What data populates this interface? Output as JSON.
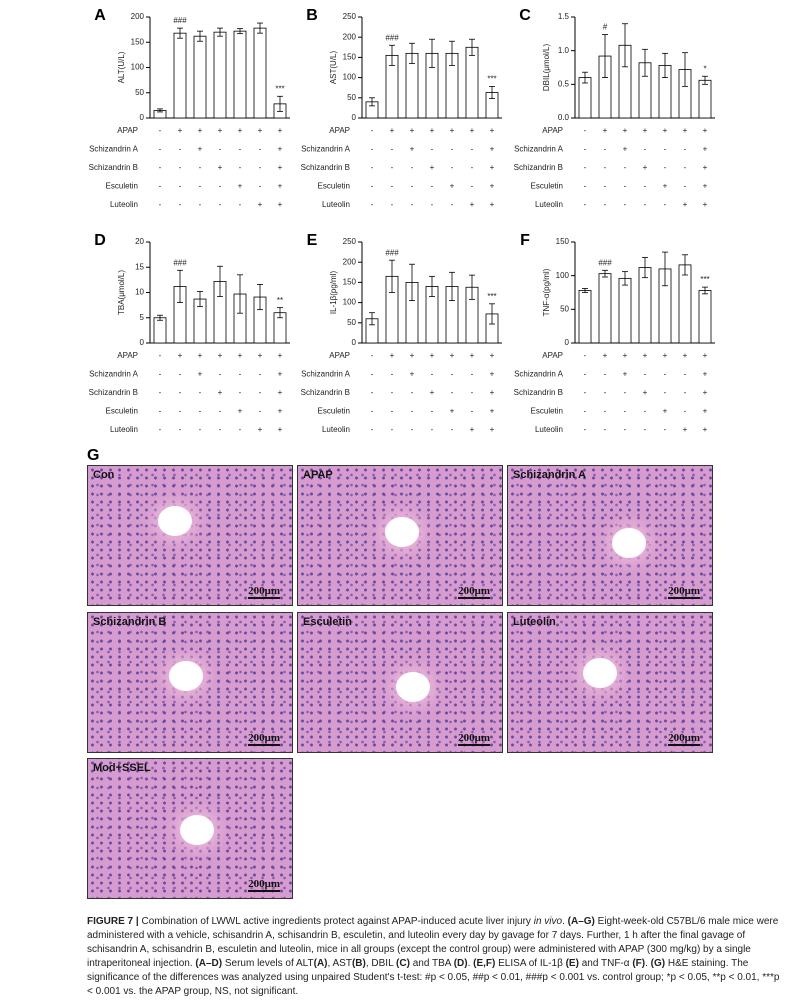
{
  "chart_data": [
    {
      "type": "bar",
      "panel": "A",
      "y_label": "ALT(U/L)",
      "values": [
        15,
        168,
        162,
        170,
        172,
        178,
        28
      ],
      "errors": [
        3,
        10,
        10,
        8,
        5,
        10,
        15
      ],
      "annotations": [
        null,
        "###",
        null,
        null,
        null,
        null,
        "***"
      ],
      "ylim": [
        0,
        200
      ],
      "yticks": [
        0,
        50,
        100,
        150,
        200
      ],
      "color": "#ffffff",
      "treatments": [
        {
          "label": "APAP",
          "marks": [
            "-",
            "+",
            "+",
            "+",
            "+",
            "+",
            "+"
          ]
        },
        {
          "label": "Schizandrin A",
          "marks": [
            "-",
            "-",
            "+",
            "-",
            "-",
            "-",
            "+"
          ]
        },
        {
          "label": "Schizandrin B",
          "marks": [
            "-",
            "-",
            "-",
            "+",
            "-",
            "-",
            "+"
          ]
        },
        {
          "label": "Esculetin",
          "marks": [
            "-",
            "-",
            "-",
            "-",
            "+",
            "-",
            "+"
          ]
        },
        {
          "label": "Luteolin",
          "marks": [
            "-",
            "-",
            "-",
            "-",
            "-",
            "+",
            "+"
          ]
        }
      ]
    },
    {
      "type": "bar",
      "panel": "B",
      "y_label": "AST(U/L)",
      "values": [
        40,
        155,
        160,
        160,
        160,
        175,
        63
      ],
      "errors": [
        10,
        25,
        25,
        35,
        30,
        20,
        15
      ],
      "annotations": [
        null,
        "###",
        null,
        null,
        null,
        null,
        "***"
      ],
      "ylim": [
        0,
        250
      ],
      "yticks": [
        0,
        50,
        100,
        150,
        200,
        250
      ],
      "color": "#ffffff",
      "treatments": [
        {
          "label": "APAP",
          "marks": [
            "-",
            "+",
            "+",
            "+",
            "+",
            "+",
            "+"
          ]
        },
        {
          "label": "Schizandrin A",
          "marks": [
            "-",
            "-",
            "+",
            "-",
            "-",
            "-",
            "+"
          ]
        },
        {
          "label": "Schizandrin B",
          "marks": [
            "-",
            "-",
            "-",
            "+",
            "-",
            "-",
            "+"
          ]
        },
        {
          "label": "Esculetin",
          "marks": [
            "-",
            "-",
            "-",
            "-",
            "+",
            "-",
            "+"
          ]
        },
        {
          "label": "Luteolin",
          "marks": [
            "-",
            "-",
            "-",
            "-",
            "-",
            "+",
            "+"
          ]
        }
      ]
    },
    {
      "type": "bar",
      "panel": "C",
      "y_label": "DBIL(μmol/L)",
      "values": [
        0.6,
        0.92,
        1.08,
        0.82,
        0.78,
        0.72,
        0.56
      ],
      "errors": [
        0.08,
        0.32,
        0.32,
        0.2,
        0.18,
        0.25,
        0.06
      ],
      "annotations": [
        null,
        "#",
        null,
        null,
        null,
        null,
        "*"
      ],
      "ylim": [
        0,
        1.5
      ],
      "yticks": [
        {
          "value": 0,
          "label": "0.0"
        },
        0.5,
        {
          "value": 1,
          "label": "1.0"
        },
        1.5
      ],
      "color": "#ffffff",
      "treatments": [
        {
          "label": "APAP",
          "marks": [
            "-",
            "+",
            "+",
            "+",
            "+",
            "+",
            "+"
          ]
        },
        {
          "label": "Schizandrin A",
          "marks": [
            "-",
            "-",
            "+",
            "-",
            "-",
            "-",
            "+"
          ]
        },
        {
          "label": "Schizandrin B",
          "marks": [
            "-",
            "-",
            "-",
            "+",
            "-",
            "-",
            "+"
          ]
        },
        {
          "label": "Esculetin",
          "marks": [
            "-",
            "-",
            "-",
            "-",
            "+",
            "-",
            "+"
          ]
        },
        {
          "label": "Luteolin",
          "marks": [
            "-",
            "-",
            "-",
            "-",
            "-",
            "+",
            "+"
          ]
        }
      ]
    },
    {
      "type": "bar",
      "panel": "D",
      "y_label": "TBA(μmol/L)",
      "values": [
        5,
        11.2,
        8.7,
        12.2,
        9.7,
        9.1,
        6
      ],
      "errors": [
        0.5,
        3.2,
        1.5,
        3,
        3.8,
        2.5,
        1
      ],
      "annotations": [
        null,
        "###",
        null,
        null,
        null,
        null,
        "**"
      ],
      "ylim": [
        0,
        20
      ],
      "yticks": [
        0,
        5,
        10,
        15,
        20
      ],
      "color": "#ffffff",
      "treatments": [
        {
          "label": "APAP",
          "marks": [
            "-",
            "+",
            "+",
            "+",
            "+",
            "+",
            "+"
          ]
        },
        {
          "label": "Schizandrin A",
          "marks": [
            "-",
            "-",
            "+",
            "-",
            "-",
            "-",
            "+"
          ]
        },
        {
          "label": "Schizandrin B",
          "marks": [
            "-",
            "-",
            "-",
            "+",
            "-",
            "-",
            "+"
          ]
        },
        {
          "label": "Esculetin",
          "marks": [
            "-",
            "-",
            "-",
            "-",
            "+",
            "-",
            "+"
          ]
        },
        {
          "label": "Luteolin",
          "marks": [
            "-",
            "-",
            "-",
            "-",
            "-",
            "+",
            "+"
          ]
        }
      ]
    },
    {
      "type": "bar",
      "panel": "E",
      "y_label": "IL-1β(pg/ml)",
      "values": [
        60,
        165,
        150,
        140,
        140,
        138,
        72
      ],
      "errors": [
        15,
        40,
        45,
        25,
        35,
        30,
        25
      ],
      "annotations": [
        null,
        "###",
        null,
        null,
        null,
        null,
        "***"
      ],
      "ylim": [
        0,
        250
      ],
      "yticks": [
        0,
        50,
        100,
        150,
        200,
        250
      ],
      "color": "#ffffff",
      "treatments": [
        {
          "label": "APAP",
          "marks": [
            "-",
            "+",
            "+",
            "+",
            "+",
            "+",
            "+"
          ]
        },
        {
          "label": "Schizandrin A",
          "marks": [
            "-",
            "-",
            "+",
            "-",
            "-",
            "-",
            "+"
          ]
        },
        {
          "label": "Schizandrin B",
          "marks": [
            "-",
            "-",
            "-",
            "+",
            "-",
            "-",
            "+"
          ]
        },
        {
          "label": "Esculetin",
          "marks": [
            "-",
            "-",
            "-",
            "-",
            "+",
            "-",
            "+"
          ]
        },
        {
          "label": "Luteolin",
          "marks": [
            "-",
            "-",
            "-",
            "-",
            "-",
            "+",
            "+"
          ]
        }
      ]
    },
    {
      "type": "bar",
      "panel": "F",
      "y_label": "TNF-α(pg/ml)",
      "values": [
        78,
        103,
        96,
        112,
        110,
        116,
        78
      ],
      "errors": [
        3,
        5,
        10,
        15,
        25,
        15,
        5
      ],
      "annotations": [
        null,
        "###",
        null,
        null,
        null,
        null,
        "***"
      ],
      "ylim": [
        0,
        150
      ],
      "yticks": [
        0,
        50,
        100,
        150
      ],
      "color": "#ffffff",
      "treatments": [
        {
          "label": "APAP",
          "marks": [
            "-",
            "+",
            "+",
            "+",
            "+",
            "+",
            "+"
          ]
        },
        {
          "label": "Schizandrin A",
          "marks": [
            "-",
            "-",
            "+",
            "-",
            "-",
            "-",
            "+"
          ]
        },
        {
          "label": "Schizandrin B",
          "marks": [
            "-",
            "-",
            "-",
            "+",
            "-",
            "-",
            "+"
          ]
        },
        {
          "label": "Esculetin",
          "marks": [
            "-",
            "-",
            "-",
            "-",
            "+",
            "-",
            "+"
          ]
        },
        {
          "label": "Luteolin",
          "marks": [
            "-",
            "-",
            "-",
            "-",
            "-",
            "+",
            "+"
          ]
        }
      ]
    }
  ],
  "histology": {
    "label": "G",
    "panels": [
      {
        "label": "Con",
        "scale": "200μm"
      },
      {
        "label": "APAP",
        "scale": "200μm"
      },
      {
        "label": "Schizandrin A",
        "scale": "200μm"
      },
      {
        "label": "Schizandrin B",
        "scale": "200μm"
      },
      {
        "label": "Esculetin",
        "scale": "200μm"
      },
      {
        "label": "Luteolin",
        "scale": "200μm"
      },
      {
        "label": "Mod+SSEL",
        "scale": "200μm"
      }
    ]
  },
  "caption": {
    "parts": [
      "FIGURE 7 |",
      " Combination of LWWL active ingredients protect against APAP-induced acute liver injury ",
      "in vivo",
      ". ",
      "(A–G)",
      " Eight-week-old C57BL/6 male mice were administered with a vehicle, schisandrin A, schisandrin B, esculetin, and luteolin every day by gavage for 7 days. Further, 1 h after the final gavage of schisandrin A, schisandrin B, esculetin and luteolin, mice in all groups (except the control group) were administered with APAP (300 mg/kg) by a single intraperitoneal injection. ",
      "(A–D)",
      " Serum levels of ALT",
      "(A)",
      ", AST",
      "(B)",
      ", DBIL ",
      "(C)",
      " and TBA ",
      "(D)",
      ". ",
      "(E,F)",
      " ELISA of IL-1β ",
      "(E)",
      " and TNF-α ",
      "(F)",
      ". ",
      "(G)",
      " H&E staining. The significance of the differences was analyzed using unpaired Student's t-test: #p < 0.05, ##p < 0.01, ###p < 0.001 vs. control group; *p < 0.05, **p < 0.01, ***p < 0.001 vs. the APAP group, NS, not significant."
    ]
  }
}
